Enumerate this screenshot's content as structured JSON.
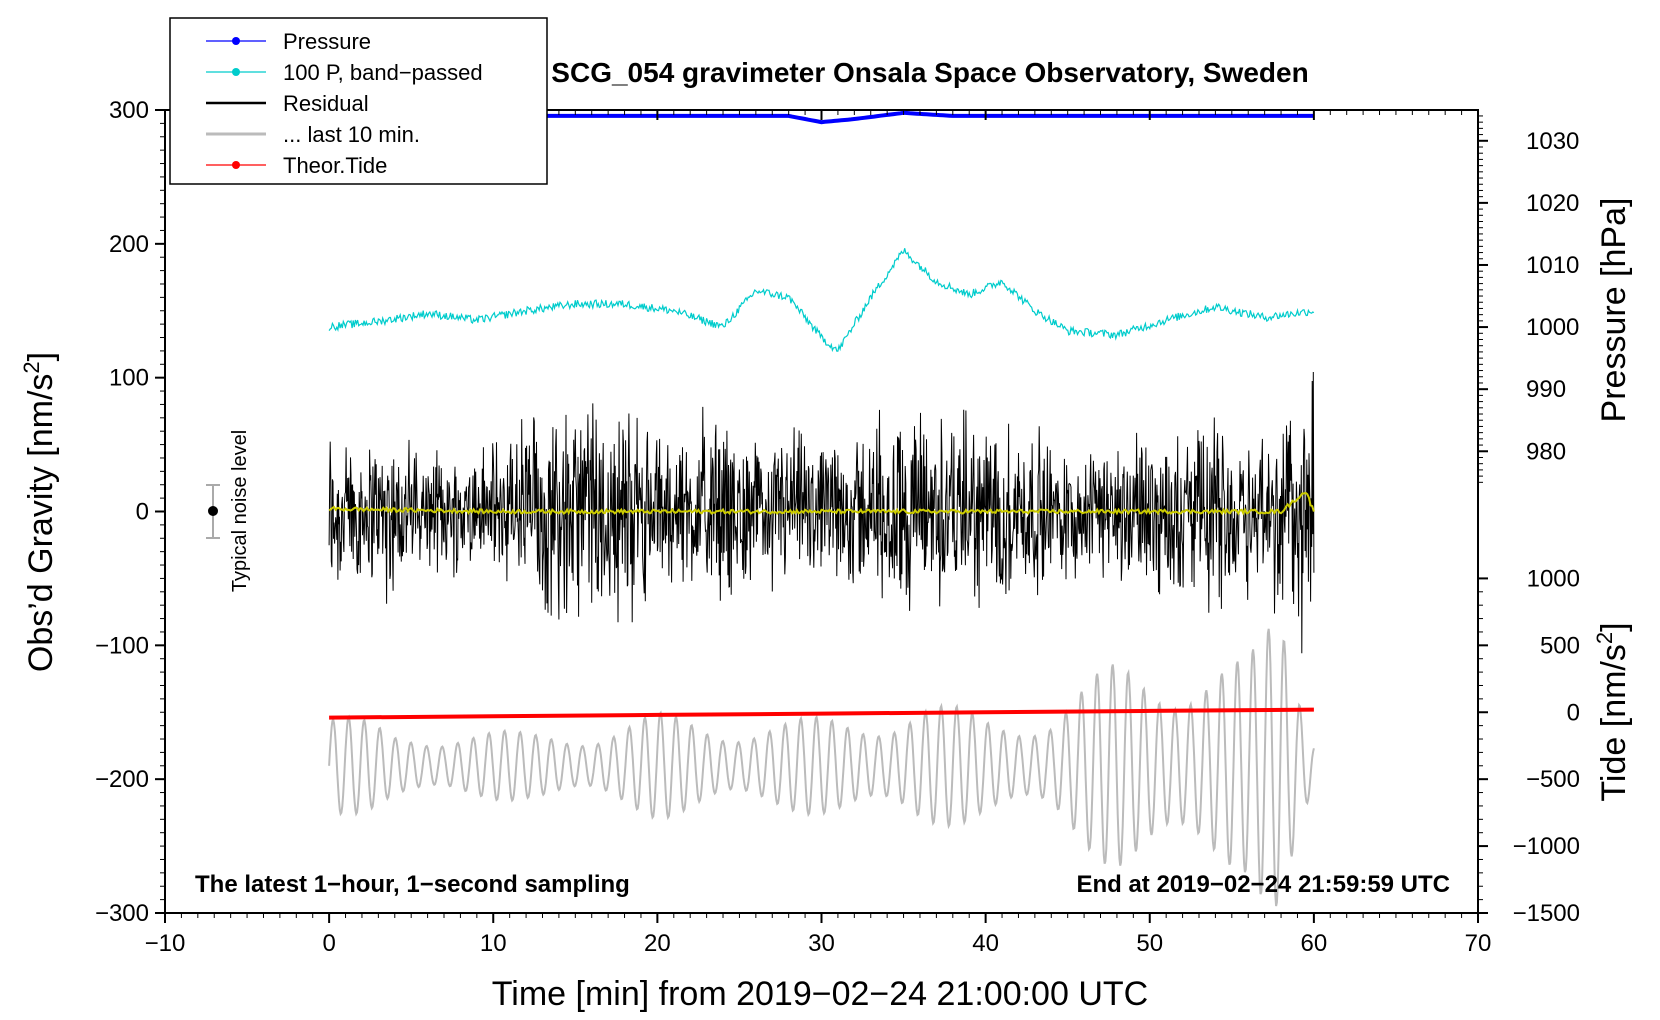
{
  "chart_data": {
    "type": "line",
    "title": "SCG_054 gravimeter Onsala Space Observatory, Sweden",
    "xlabel": "Time [min] from 2019−02−24 21:00:00 UTC",
    "ylabel_left": "Obs’d Gravity [nm/s",
    "ylabel_left_sup": "2",
    "ylabel_left_end": "]",
    "ylabel_right_top": "Pressure [hPa]",
    "ylabel_right_bottom": "Tide [nm/s",
    "ylabel_right_bottom_sup": "2",
    "ylabel_right_bottom_end": "]",
    "xlim": [
      -10,
      70
    ],
    "ylim_left": [
      -300,
      300
    ],
    "pressure_ticks": [
      980,
      990,
      1000,
      1010,
      1020,
      1030
    ],
    "tide_ticks": [
      -1500,
      -1000,
      -500,
      0,
      500,
      1000
    ],
    "x_ticks": [
      "−10",
      "0",
      "10",
      "20",
      "30",
      "40",
      "50",
      "60",
      "70"
    ],
    "y_ticks": [
      "300",
      "200",
      "100",
      "0",
      "−100",
      "−200",
      "−300"
    ],
    "pressure_tick_labels": [
      "1030",
      "1020",
      "1010",
      "1000",
      "990",
      "980"
    ],
    "tide_tick_labels": [
      "1000",
      "500",
      "0",
      "−500",
      "−1000",
      "−1500"
    ],
    "legend": [
      {
        "label": "Pressure",
        "color": "#0000ff"
      },
      {
        "label": "100 P, band−passed",
        "color": "#00cccc"
      },
      {
        "label": "Residual",
        "color": "#000000"
      },
      {
        "label": "... last 10 min.",
        "color": "#bbbbbb"
      },
      {
        "label": "Theor.Tide",
        "color": "#ff0000"
      }
    ],
    "annotations": {
      "left": "The latest 1−hour, 1−second sampling",
      "right": "End at 2019−02−24 21:59:59 UTC",
      "noise": "Typical noise level"
    },
    "series": [
      {
        "name": "Pressure",
        "axis": "pressure_hPa",
        "color": "#0000ff",
        "x": [
          0,
          5,
          10,
          15,
          20,
          25,
          28,
          30,
          32,
          35,
          38,
          40,
          45,
          50,
          55,
          60
        ],
        "y": [
          1034,
          1034,
          1034,
          1034,
          1034,
          1034,
          1034,
          1033,
          1033.5,
          1034.5,
          1034,
          1034,
          1034,
          1034,
          1034,
          1034
        ]
      },
      {
        "name": "100 P, band-passed",
        "axis": "gravity",
        "color": "#00cccc",
        "x": [
          0,
          3,
          6,
          9,
          12,
          15,
          18,
          21,
          24,
          26,
          28,
          30,
          31,
          33,
          35,
          37,
          39,
          41,
          43,
          45,
          48,
          51,
          54,
          57,
          60
        ],
        "y": [
          138,
          142,
          148,
          143,
          150,
          155,
          155,
          150,
          138,
          165,
          160,
          130,
          120,
          160,
          195,
          172,
          162,
          172,
          150,
          135,
          132,
          143,
          153,
          145,
          150
        ]
      },
      {
        "name": "Residual",
        "axis": "gravity",
        "color": "#000000",
        "x": [
          0,
          10,
          20,
          30,
          40,
          50,
          60
        ],
        "y": [
          0,
          0,
          0,
          0,
          0,
          0,
          0
        ],
        "envelope_x": [
          0,
          2,
          4,
          6,
          8,
          10,
          12,
          14,
          16,
          18,
          20,
          22,
          24,
          26,
          28,
          30,
          32,
          34,
          36,
          38,
          40,
          42,
          44,
          46,
          48,
          50,
          52,
          54,
          56,
          58,
          60
        ],
        "envelope_amp": [
          85,
          60,
          70,
          45,
          55,
          60,
          95,
          90,
          100,
          95,
          65,
          70,
          80,
          55,
          75,
          55,
          70,
          80,
          90,
          85,
          80,
          75,
          65,
          55,
          60,
          70,
          70,
          80,
          70,
          90,
          120
        ]
      },
      {
        "name": "... last 10 min.",
        "axis": "gravity",
        "color": "#bbbbbb",
        "x": [
          0,
          10,
          20,
          30,
          40,
          50,
          60
        ],
        "y": [
          -190,
          -190,
          -190,
          -190,
          -190,
          -190,
          -190
        ],
        "envelope_x": [
          0,
          4,
          8,
          12,
          16,
          20,
          24,
          28,
          32,
          36,
          40,
          44,
          48,
          52,
          56,
          58,
          60
        ],
        "envelope_amp": [
          45,
          25,
          30,
          25,
          30,
          40,
          35,
          35,
          40,
          50,
          40,
          45,
          80,
          85,
          80,
          130,
          30
        ]
      },
      {
        "name": "Theor.Tide",
        "axis": "tide_nm_s2",
        "color": "#ff0000",
        "x": [
          0,
          10,
          20,
          30,
          40,
          50,
          60
        ],
        "y": [
          -40,
          -30,
          -20,
          -10,
          0,
          10,
          20
        ]
      },
      {
        "name": "Smoothed residual",
        "axis": "gravity",
        "color": "#cccc00",
        "x": [
          0,
          10,
          20,
          30,
          40,
          50,
          58,
          59.5,
          60
        ],
        "y": [
          2,
          0,
          0,
          0,
          0,
          0,
          0,
          15,
          0
        ]
      }
    ]
  }
}
